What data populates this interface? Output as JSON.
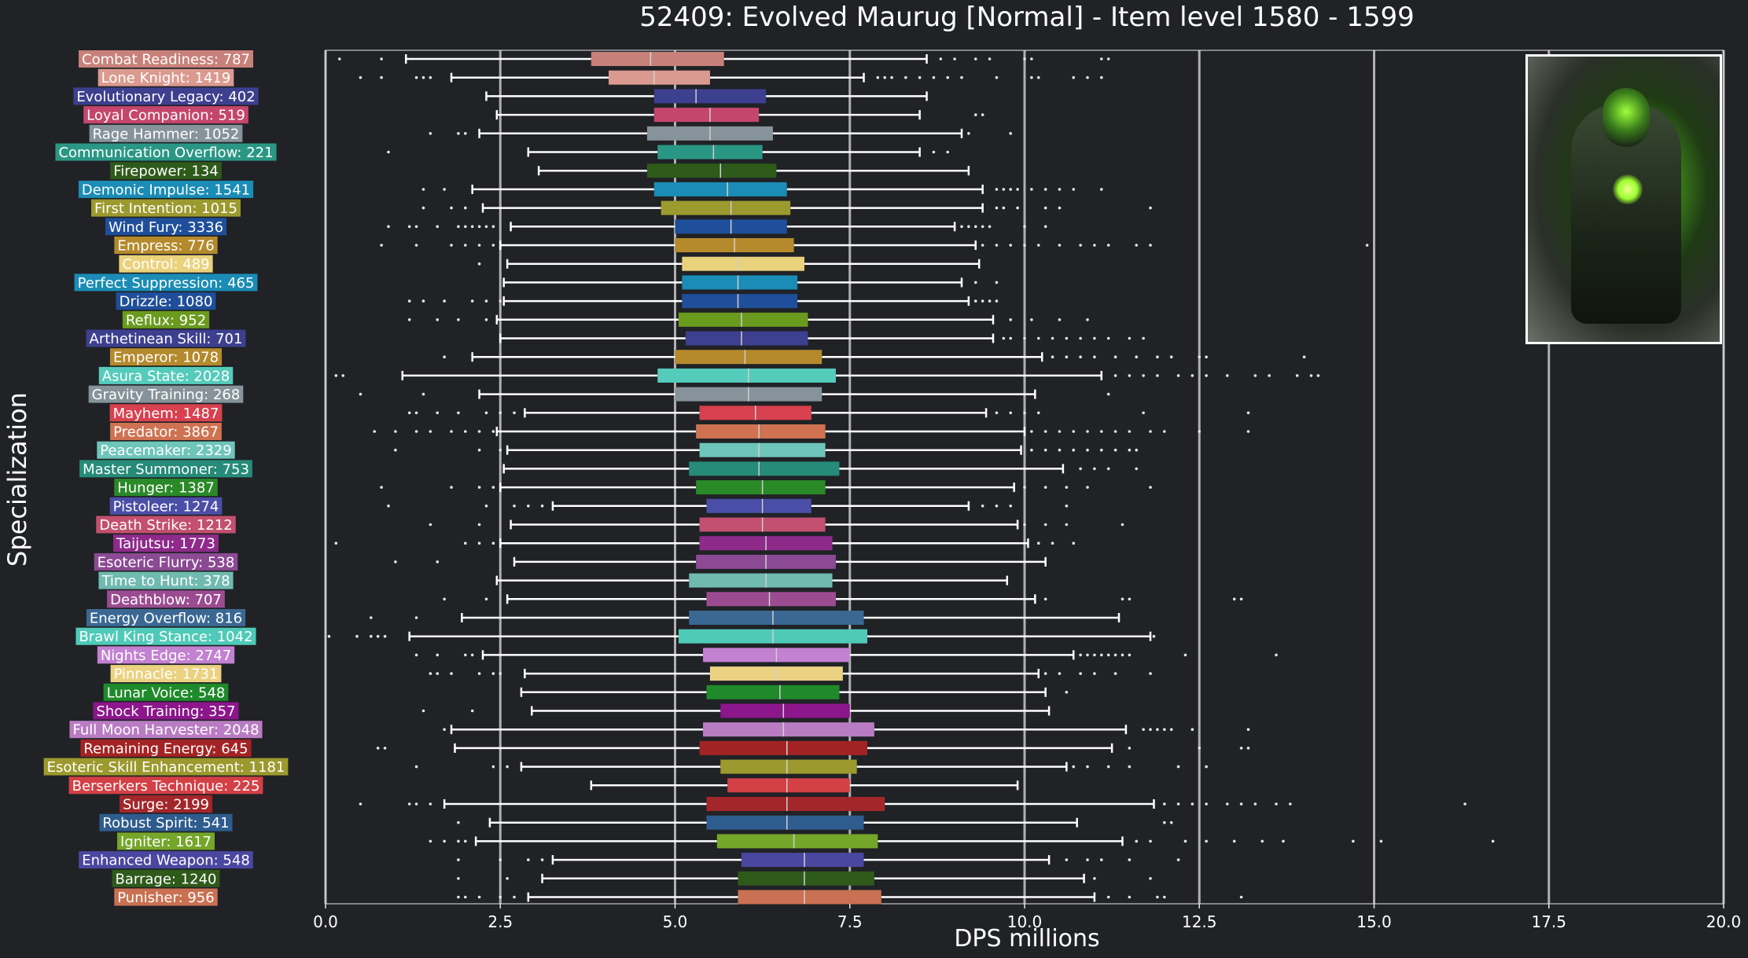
{
  "chart_data": {
    "type": "boxplot",
    "title": "52409: Evolved Maurug [Normal] - Item level 1580 - 1599",
    "xlabel": "DPS millions",
    "ylabel": "Specialization",
    "xlim": [
      0,
      20
    ],
    "xticks": [
      "0.0",
      "2.5",
      "5.0",
      "7.5",
      "10.0",
      "12.5",
      "15.0",
      "17.5",
      "20.0"
    ],
    "grid": "vertical",
    "categories": [
      {
        "label": "Combat Readiness: 787",
        "color": "#c8817a",
        "whislo": 1.15,
        "q1": 3.8,
        "med": 4.65,
        "q3": 5.7,
        "whishi": 8.6,
        "outliers": [
          0.2,
          0.8,
          8.8,
          9.0,
          9.3,
          9.5,
          10.0,
          10.1,
          11.1,
          11.2
        ]
      },
      {
        "label": "Lone Knight: 1419",
        "color": "#db9a8f",
        "whislo": 1.8,
        "q1": 4.05,
        "med": 4.7,
        "q3": 5.5,
        "whishi": 7.7,
        "outliers": [
          0.5,
          0.8,
          1.3,
          1.4,
          1.5,
          7.9,
          8.0,
          8.1,
          8.3,
          8.5,
          8.7,
          8.9,
          9.1,
          9.6,
          10.1,
          10.2,
          10.7,
          10.9,
          11.1
        ]
      },
      {
        "label": "Evolutionary Legacy: 402",
        "color": "#3d3f8f",
        "whislo": 2.3,
        "q1": 4.7,
        "med": 5.3,
        "q3": 6.3,
        "whishi": 8.6,
        "outliers": []
      },
      {
        "label": "Loyal Companion: 519",
        "color": "#c5466c",
        "whislo": 2.45,
        "q1": 4.7,
        "med": 5.5,
        "q3": 6.2,
        "whishi": 8.5,
        "outliers": [
          9.3,
          9.4
        ]
      },
      {
        "label": "Rage Hammer: 1052",
        "color": "#86939a",
        "whislo": 2.2,
        "q1": 4.6,
        "med": 5.5,
        "q3": 6.4,
        "whishi": 9.1,
        "outliers": [
          1.5,
          1.9,
          2.0,
          9.2,
          9.8
        ]
      },
      {
        "label": "Communication Overflow: 221",
        "color": "#2a9784",
        "whislo": 2.9,
        "q1": 4.75,
        "med": 5.55,
        "q3": 6.25,
        "whishi": 8.5,
        "outliers": [
          0.9,
          8.7,
          8.9
        ]
      },
      {
        "label": "Firepower: 134",
        "color": "#2e5a1a",
        "whislo": 3.05,
        "q1": 4.6,
        "med": 5.65,
        "q3": 6.45,
        "whishi": 9.2,
        "outliers": []
      },
      {
        "label": "Demonic Impulse: 1541",
        "color": "#1a8cb5",
        "whislo": 2.1,
        "q1": 4.7,
        "med": 5.75,
        "q3": 6.6,
        "whishi": 9.4,
        "outliers": [
          1.4,
          1.7,
          9.6,
          9.7,
          9.8,
          9.9,
          10.1,
          10.3,
          10.5,
          10.7,
          11.1
        ]
      },
      {
        "label": "First Intention: 1015",
        "color": "#9c9a2e",
        "whislo": 2.25,
        "q1": 4.8,
        "med": 5.8,
        "q3": 6.65,
        "whishi": 9.4,
        "outliers": [
          1.4,
          1.8,
          2.0,
          9.6,
          9.7,
          9.9,
          10.3,
          10.5,
          11.8
        ]
      },
      {
        "label": "Wind Fury: 3336",
        "color": "#1f4f9a",
        "whislo": 2.65,
        "q1": 5.0,
        "med": 5.8,
        "q3": 6.6,
        "whishi": 9.0,
        "outliers": [
          0.9,
          1.2,
          1.3,
          1.6,
          1.9,
          2.0,
          2.1,
          2.2,
          2.3,
          2.4,
          9.1,
          9.2,
          9.3,
          9.4,
          9.5,
          10.0,
          10.3
        ]
      },
      {
        "label": "Empress: 776",
        "color": "#b58a2d",
        "whislo": 2.5,
        "q1": 5.0,
        "med": 5.85,
        "q3": 6.7,
        "whishi": 9.3,
        "outliers": [
          0.8,
          1.3,
          1.8,
          2.0,
          2.2,
          2.4,
          9.4,
          9.6,
          9.8,
          10.0,
          10.2,
          10.5,
          10.8,
          11.0,
          11.2,
          11.6,
          11.8,
          14.9
        ]
      },
      {
        "label": "Control: 489",
        "color": "#ead27c",
        "whislo": 2.6,
        "q1": 5.1,
        "med": 5.9,
        "q3": 6.85,
        "whishi": 9.35,
        "outliers": [
          2.2
        ]
      },
      {
        "label": "Perfect Suppression: 465",
        "color": "#1a8cb5",
        "whislo": 2.55,
        "q1": 5.1,
        "med": 5.9,
        "q3": 6.75,
        "whishi": 9.1,
        "outliers": [
          9.3,
          9.6
        ]
      },
      {
        "label": "Drizzle: 1080",
        "color": "#1f4f9a",
        "whislo": 2.55,
        "q1": 5.1,
        "med": 5.9,
        "q3": 6.75,
        "whishi": 9.2,
        "outliers": [
          1.2,
          1.4,
          1.7,
          2.1,
          2.3,
          2.5,
          9.3,
          9.4,
          9.5,
          9.6
        ]
      },
      {
        "label": "Reflux: 952",
        "color": "#6a9b1e",
        "whislo": 2.45,
        "q1": 5.05,
        "med": 5.95,
        "q3": 6.9,
        "whishi": 9.55,
        "outliers": [
          1.2,
          1.6,
          1.9,
          2.3,
          9.8,
          10.1,
          10.5,
          10.9
        ]
      },
      {
        "label": "Arthetinean Skill: 701",
        "color": "#3d3f8f",
        "whislo": 2.5,
        "q1": 5.15,
        "med": 5.95,
        "q3": 6.9,
        "whishi": 9.55,
        "outliers": [
          9.7,
          9.8,
          10.0,
          10.2,
          10.4,
          10.6,
          10.8,
          11.0,
          11.2,
          11.5,
          11.7
        ]
      },
      {
        "label": "Emperor: 1078",
        "color": "#b58a2d",
        "whislo": 2.1,
        "q1": 5.0,
        "med": 6.0,
        "q3": 7.1,
        "whishi": 10.25,
        "outliers": [
          1.7,
          10.4,
          10.6,
          10.8,
          11.0,
          11.3,
          11.6,
          11.9,
          12.1,
          12.5,
          12.6,
          14.0
        ]
      },
      {
        "label": "Asura State: 2028",
        "color": "#55cbbb",
        "whislo": 1.1,
        "q1": 4.75,
        "med": 6.05,
        "q3": 7.3,
        "whishi": 11.1,
        "outliers": [
          0.15,
          0.25,
          11.3,
          11.5,
          11.7,
          11.9,
          12.2,
          12.4,
          12.6,
          12.9,
          13.3,
          13.5,
          13.9,
          14.1,
          14.2
        ]
      },
      {
        "label": "Gravity Training: 268",
        "color": "#86939a",
        "whislo": 2.2,
        "q1": 5.0,
        "med": 6.05,
        "q3": 7.1,
        "whishi": 10.15,
        "outliers": [
          0.5,
          1.4,
          11.2
        ]
      },
      {
        "label": "Mayhem: 1487",
        "color": "#d8414f",
        "whislo": 2.85,
        "q1": 5.35,
        "med": 6.15,
        "q3": 6.95,
        "whishi": 9.45,
        "outliers": [
          1.2,
          1.3,
          1.6,
          1.9,
          2.3,
          2.5,
          2.7,
          9.6,
          9.8,
          10.0,
          10.2,
          11.7,
          13.2
        ]
      },
      {
        "label": "Predator: 3867",
        "color": "#cf7252",
        "whislo": 2.45,
        "q1": 5.3,
        "med": 6.2,
        "q3": 7.15,
        "whishi": 10.0,
        "outliers": [
          0.7,
          1.0,
          1.3,
          1.5,
          1.8,
          2.0,
          2.2,
          2.4,
          10.1,
          10.3,
          10.5,
          10.7,
          10.9,
          11.1,
          11.3,
          11.5,
          11.8,
          12.0,
          12.5,
          13.2
        ]
      },
      {
        "label": "Peacemaker: 2329",
        "color": "#6ec5ba",
        "whislo": 2.6,
        "q1": 5.35,
        "med": 6.2,
        "q3": 7.15,
        "whishi": 9.95,
        "outliers": [
          1.0,
          2.2,
          2.5,
          10.1,
          10.3,
          10.5,
          10.7,
          10.9,
          11.1,
          11.3,
          11.5,
          11.6
        ]
      },
      {
        "label": "Master Summoner: 753",
        "color": "#268b78",
        "whislo": 2.55,
        "q1": 5.2,
        "med": 6.2,
        "q3": 7.35,
        "whishi": 10.55,
        "outliers": [
          10.8,
          11.0,
          11.2,
          11.6
        ]
      },
      {
        "label": "Hunger: 1387",
        "color": "#2a8a28",
        "whislo": 2.5,
        "q1": 5.3,
        "med": 6.25,
        "q3": 7.15,
        "whishi": 9.85,
        "outliers": [
          0.8,
          1.8,
          2.2,
          2.4,
          10.0,
          10.3,
          10.6,
          10.9,
          11.8
        ]
      },
      {
        "label": "Pistoleer: 1274",
        "color": "#4b4ea6",
        "whislo": 3.25,
        "q1": 5.45,
        "med": 6.25,
        "q3": 6.95,
        "whishi": 9.2,
        "outliers": [
          0.9,
          2.3,
          2.7,
          2.9,
          3.1,
          9.4,
          9.6,
          9.8,
          10.6
        ]
      },
      {
        "label": "Death Strike: 1212",
        "color": "#c2506e",
        "whislo": 2.65,
        "q1": 5.35,
        "med": 6.25,
        "q3": 7.15,
        "whishi": 9.9,
        "outliers": [
          1.5,
          2.2,
          10.0,
          10.3,
          10.6,
          11.4
        ]
      },
      {
        "label": "Taijutsu: 1773",
        "color": "#8e2a8a",
        "whislo": 2.5,
        "q1": 5.35,
        "med": 6.3,
        "q3": 7.25,
        "whishi": 10.05,
        "outliers": [
          0.15,
          2.0,
          2.2,
          2.4,
          10.2,
          10.4,
          10.7
        ]
      },
      {
        "label": "Esoteric Flurry: 538",
        "color": "#8b4a93",
        "whislo": 2.7,
        "q1": 5.3,
        "med": 6.3,
        "q3": 7.3,
        "whishi": 10.3,
        "outliers": [
          1.0,
          1.6
        ]
      },
      {
        "label": "Time to Hunt: 378",
        "color": "#70bab0",
        "whislo": 2.45,
        "q1": 5.2,
        "med": 6.3,
        "q3": 7.25,
        "whishi": 9.75,
        "outliers": []
      },
      {
        "label": "Deathblow: 707",
        "color": "#9b4c91",
        "whislo": 2.6,
        "q1": 5.45,
        "med": 6.35,
        "q3": 7.3,
        "whishi": 10.15,
        "outliers": [
          1.7,
          2.3,
          10.3,
          11.4,
          11.5,
          13.0,
          13.1
        ]
      },
      {
        "label": "Energy Overflow: 816",
        "color": "#3a6893",
        "whislo": 1.95,
        "q1": 5.2,
        "med": 6.4,
        "q3": 7.7,
        "whishi": 11.35,
        "outliers": [
          0.65,
          1.3
        ]
      },
      {
        "label": "Brawl King Stance: 1042",
        "color": "#4fcab8",
        "whislo": 1.2,
        "q1": 5.05,
        "med": 6.4,
        "q3": 7.75,
        "whishi": 11.8,
        "outliers": [
          0.05,
          0.45,
          0.65,
          0.75,
          0.85,
          11.85
        ]
      },
      {
        "label": "Nights Edge: 2747",
        "color": "#c281d1",
        "whislo": 2.25,
        "q1": 5.4,
        "med": 6.45,
        "q3": 7.5,
        "whishi": 10.7,
        "outliers": [
          1.3,
          1.6,
          2.0,
          2.1,
          10.8,
          10.9,
          11.0,
          11.1,
          11.2,
          11.3,
          11.4,
          11.5,
          12.3,
          13.6
        ]
      },
      {
        "label": "Pinnacle: 1731",
        "color": "#ebd282",
        "whislo": 2.85,
        "q1": 5.5,
        "med": 6.45,
        "q3": 7.4,
        "whishi": 10.2,
        "outliers": [
          1.5,
          1.6,
          1.8,
          2.2,
          2.4,
          2.5,
          10.3,
          10.5,
          10.8,
          11.0,
          11.3,
          11.8
        ]
      },
      {
        "label": "Lunar Voice: 548",
        "color": "#1f8a2a",
        "whislo": 2.8,
        "q1": 5.45,
        "med": 6.5,
        "q3": 7.35,
        "whishi": 10.3,
        "outliers": [
          10.6
        ]
      },
      {
        "label": "Shock Training: 357",
        "color": "#8c168c",
        "whislo": 2.95,
        "q1": 5.65,
        "med": 6.55,
        "q3": 7.5,
        "whishi": 10.35,
        "outliers": [
          1.4,
          2.1
        ]
      },
      {
        "label": "Full Moon Harvester: 2048",
        "color": "#b97cc3",
        "whislo": 1.8,
        "q1": 5.4,
        "med": 6.55,
        "q3": 7.85,
        "whishi": 11.45,
        "outliers": [
          1.7,
          11.7,
          11.8,
          11.9,
          12.0,
          12.1,
          12.4,
          13.2
        ]
      },
      {
        "label": "Remaining Energy: 645",
        "color": "#a32324",
        "whislo": 1.85,
        "q1": 5.35,
        "med": 6.6,
        "q3": 7.75,
        "whishi": 11.25,
        "outliers": [
          0.75,
          0.85,
          11.5,
          12.5,
          13.1,
          13.2
        ]
      },
      {
        "label": "Esoteric Skill Enhancement: 1181",
        "color": "#9c9a2e",
        "whislo": 2.8,
        "q1": 5.65,
        "med": 6.6,
        "q3": 7.6,
        "whishi": 10.6,
        "outliers": [
          1.3,
          2.4,
          2.6,
          10.7,
          10.9,
          11.2,
          11.5,
          12.2,
          12.6
        ]
      },
      {
        "label": "Berserkers Technique: 225",
        "color": "#d34045",
        "whislo": 3.8,
        "q1": 5.75,
        "med": 6.6,
        "q3": 7.5,
        "whishi": 9.9,
        "outliers": []
      },
      {
        "label": "Surge: 2199",
        "color": "#a3262a",
        "whislo": 1.7,
        "q1": 5.45,
        "med": 6.6,
        "q3": 8.0,
        "whishi": 11.85,
        "outliers": [
          0.5,
          1.2,
          1.3,
          1.5,
          12.0,
          12.2,
          12.4,
          12.6,
          12.9,
          13.1,
          13.3,
          13.6,
          13.8,
          16.3
        ]
      },
      {
        "label": "Robust Spirit: 541",
        "color": "#2e5c8e",
        "whislo": 2.35,
        "q1": 5.45,
        "med": 6.6,
        "q3": 7.7,
        "whishi": 10.75,
        "outliers": [
          1.9,
          12.0,
          12.1
        ]
      },
      {
        "label": "Igniter: 1617",
        "color": "#74a62a",
        "whislo": 2.15,
        "q1": 5.6,
        "med": 6.7,
        "q3": 7.9,
        "whishi": 11.4,
        "outliers": [
          1.5,
          1.7,
          1.9,
          2.0,
          11.6,
          11.8,
          12.3,
          12.6,
          13.0,
          13.4,
          13.7,
          14.7,
          15.1,
          16.7
        ]
      },
      {
        "label": "Enhanced Weapon: 548",
        "color": "#4a47a0",
        "whislo": 3.25,
        "q1": 5.95,
        "med": 6.85,
        "q3": 7.7,
        "whishi": 10.35,
        "outliers": [
          1.9,
          2.5,
          2.9,
          3.1,
          10.6,
          10.9,
          11.1,
          11.5,
          12.2
        ]
      },
      {
        "label": "Barrage: 1240",
        "color": "#2e5a1a",
        "whislo": 3.1,
        "q1": 5.9,
        "med": 6.85,
        "q3": 7.85,
        "whishi": 10.85,
        "outliers": [
          1.9,
          2.6,
          11.0,
          11.8
        ]
      },
      {
        "label": "Punisher: 956",
        "color": "#c97152",
        "whislo": 2.9,
        "q1": 5.9,
        "med": 6.85,
        "q3": 7.95,
        "whishi": 11.0,
        "outliers": [
          1.9,
          2.0,
          2.2,
          2.5,
          2.7,
          11.2,
          11.5,
          11.9,
          12.0,
          13.1
        ]
      }
    ]
  }
}
